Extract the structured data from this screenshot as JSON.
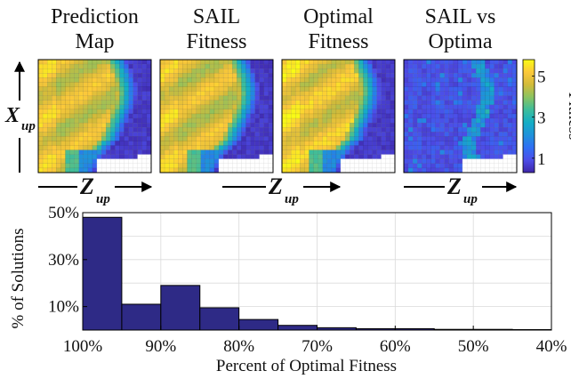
{
  "maps": {
    "panels": [
      {
        "title_line1": "Prediction",
        "title_line2": "Map",
        "kind": "fitness",
        "seed": 1
      },
      {
        "title_line1": "SAIL",
        "title_line2": "Fitness",
        "kind": "fitness",
        "seed": 2
      },
      {
        "title_line1": "Optimal",
        "title_line2": "Fitness",
        "kind": "fitness",
        "seed": 3
      },
      {
        "title_line1": "SAIL vs",
        "title_line2": "Optima",
        "kind": "difference",
        "seed": 4
      }
    ],
    "grid_size": 25,
    "x_axis_var": "Z",
    "x_axis_sub": "up",
    "y_axis_var": "X",
    "y_axis_sub": "up",
    "colorbar": {
      "label": "Fitness",
      "ticks": [
        5,
        3,
        1
      ],
      "range": [
        0.3,
        5.8
      ],
      "colors": [
        "#3e26a8",
        "#4d4de8",
        "#2f6ff4",
        "#1f92da",
        "#14aec5",
        "#3dbd9b",
        "#8ac361",
        "#d2bb3a",
        "#fcc83a",
        "#f9fb15"
      ]
    }
  },
  "chart_data": {
    "type": "bar",
    "xlabel": "Percent of Optimal Fitness",
    "ylabel": "% of Solutions",
    "x_ticks": [
      "100%",
      "90%",
      "80%",
      "70%",
      "60%",
      "50%",
      "40%"
    ],
    "x_range": [
      100,
      40
    ],
    "bin_edges": [
      100,
      95,
      90,
      85,
      80,
      75,
      70,
      65,
      60,
      55,
      50,
      45,
      40
    ],
    "values": [
      48,
      11,
      19,
      9.5,
      4.5,
      2,
      1,
      0.6,
      0.6,
      0.3,
      0.3,
      0.2
    ],
    "y_ticks": [
      "10%",
      "30%",
      "50%"
    ],
    "ylim": [
      0,
      50
    ],
    "bar_color": "#2e2a86",
    "grid": true
  }
}
